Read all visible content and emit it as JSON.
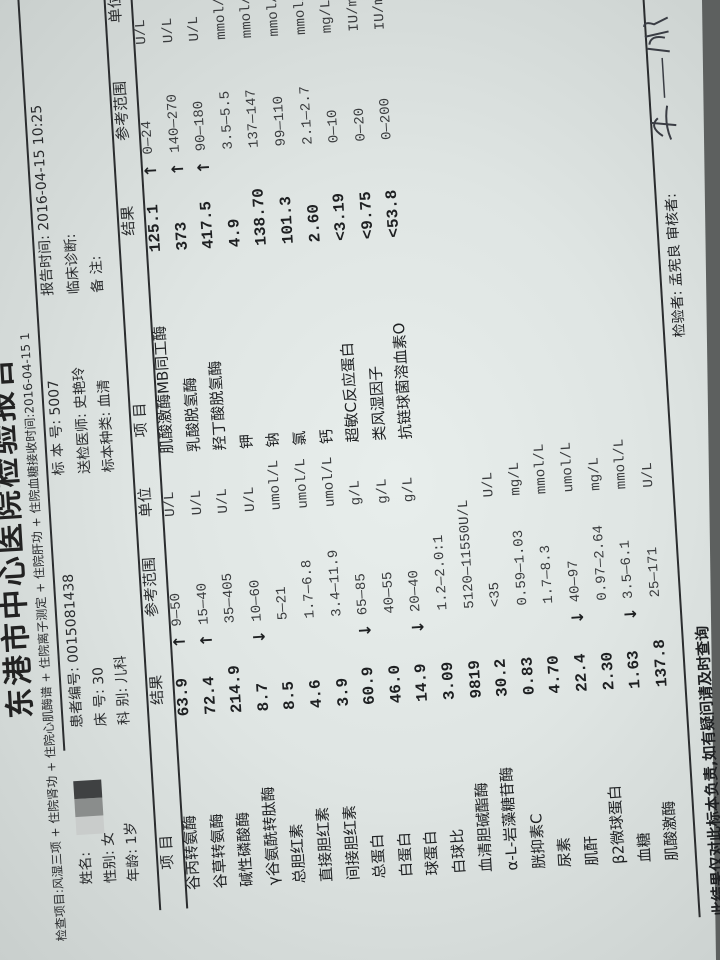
{
  "report": {
    "title": "东港市中心医院检验报告",
    "items_line": "检查项目:风湿三项 + 住院肾功 + 住院心肌酶谱 + 住院离子测定 + 住院肝功 + 住院血糖接收时间:2016-04-15 1"
  },
  "patient": {
    "name_label": "姓名:",
    "sex_label": "性别:",
    "sex": "女",
    "age_label": "年龄:",
    "age": "1岁",
    "id_label": "患者编号:",
    "id": "0015081438",
    "bed_label": "床      号:",
    "bed": "30",
    "dept_label": "科      别:",
    "dept": "儿科",
    "sample_no_label": "标 本 号:",
    "sample_no": "5007",
    "doctor_label": "送检医师:",
    "doctor": "史艳玲",
    "sample_type_label": "标本种类:",
    "sample_type": "血清",
    "report_time_label": "报告时间:",
    "report_time": "2016-04-15 10:25",
    "diagnosis_label": "临床诊断:",
    "remark_label": "备      注:"
  },
  "columns": {
    "item": "项  目",
    "result": "结果",
    "ref": "参考范围",
    "unit": "单位"
  },
  "left_table": {
    "rows": [
      {
        "name": "谷丙转氨酶",
        "result": "63.9",
        "flag": "↑",
        "ref": "9—50",
        "unit": "U/L"
      },
      {
        "name": "谷草转氨酶",
        "result": "72.4",
        "flag": "↑",
        "ref": "15—40",
        "unit": "U/L"
      },
      {
        "name": "碱性磷酸酶",
        "result": "214.9",
        "flag": "",
        "ref": "35—405",
        "unit": "U/L"
      },
      {
        "name": "γ谷氨酰转肽酶",
        "result": "8.7",
        "flag": "↓",
        "ref": "10—60",
        "unit": "U/L"
      },
      {
        "name": "总胆红素",
        "result": "8.5",
        "flag": "",
        "ref": "5—21",
        "unit": "umol/L"
      },
      {
        "name": "直接胆红素",
        "result": "4.6",
        "flag": "",
        "ref": "1.7—6.8",
        "unit": "umol/L"
      },
      {
        "name": "间接胆红素",
        "result": "3.9",
        "flag": "",
        "ref": "3.4—11.9",
        "unit": "umol/L"
      },
      {
        "name": "总蛋白",
        "result": "60.9",
        "flag": "↓",
        "ref": "65—85",
        "unit": "g/L"
      },
      {
        "name": "白蛋白",
        "result": "46.0",
        "flag": "",
        "ref": "40—55",
        "unit": "g/L"
      },
      {
        "name": "球蛋白",
        "result": "14.9",
        "flag": "↓",
        "ref": "20—40",
        "unit": "g/L"
      },
      {
        "name": "白球比",
        "result": "3.09",
        "flag": "",
        "ref": "1.2—2.0:1",
        "unit": ""
      },
      {
        "name": "血清胆碱酯酶",
        "result": "9819",
        "flag": "",
        "ref": "5120—11550U/L",
        "unit": ""
      },
      {
        "name": "α-L-岩藻糖苷酶",
        "result": "30.2",
        "flag": "",
        "ref": "<35",
        "unit": "U/L"
      },
      {
        "name": "胱抑素C",
        "result": "0.83",
        "flag": "",
        "ref": "0.59—1.03",
        "unit": "mg/L"
      },
      {
        "name": "尿素",
        "result": "4.70",
        "flag": "",
        "ref": "1.7—8.3",
        "unit": "mmol/L"
      },
      {
        "name": "肌酐",
        "result": "22.4",
        "flag": "↓",
        "ref": "40—97",
        "unit": "umol/L"
      },
      {
        "name": "β2微球蛋白",
        "result": "2.30",
        "flag": "",
        "ref": "0.97—2.64",
        "unit": "mg/L"
      },
      {
        "name": "血糖",
        "result": "1.63",
        "flag": "↓",
        "ref": "3.5—6.1",
        "unit": "mmol/L"
      },
      {
        "name": "肌酸激酶",
        "result": "137.8",
        "flag": "",
        "ref": "25—171",
        "unit": "U/L"
      }
    ]
  },
  "right_table": {
    "rows": [
      {
        "name": "肌酸激酶MB同工酶",
        "result": "125.1",
        "flag": "↑",
        "ref": "0—24",
        "unit": "U/L"
      },
      {
        "name": "乳酸脱氢酶",
        "result": "373",
        "flag": "↑",
        "ref": "140—270",
        "unit": "U/L"
      },
      {
        "name": "羟丁酸脱氢酶",
        "result": "417.5",
        "flag": "↑",
        "ref": "90—180",
        "unit": "U/L"
      },
      {
        "name": "钾",
        "result": "4.9",
        "flag": "",
        "ref": "3.5—5.5",
        "unit": "mmol/L"
      },
      {
        "name": "钠",
        "result": "138.70",
        "flag": "",
        "ref": "137—147",
        "unit": "mmol/L"
      },
      {
        "name": "氯",
        "result": "101.3",
        "flag": "",
        "ref": "99—110",
        "unit": "mmol/L"
      },
      {
        "name": "钙",
        "result": "2.60",
        "flag": "",
        "ref": "2.1—2.7",
        "unit": "mmol/L"
      },
      {
        "name": "超敏C反应蛋白",
        "result": "<3.19",
        "flag": "",
        "ref": "0—10",
        "unit": "mg/L"
      },
      {
        "name": "类风湿因子",
        "result": "<9.75",
        "flag": "",
        "ref": "0—20",
        "unit": "IU/ml"
      },
      {
        "name": "抗链球菌溶血素O",
        "result": "<53.8",
        "flag": "",
        "ref": "0—200",
        "unit": "IU/ml"
      }
    ]
  },
  "footer": {
    "disclaimer": "此结果仅对此标本负责,如有疑问请及时查询",
    "tester_label": "检验者:",
    "tester": "孟宪良",
    "reviewer_label": "审核者:",
    "reviewer_signature": "王"
  }
}
